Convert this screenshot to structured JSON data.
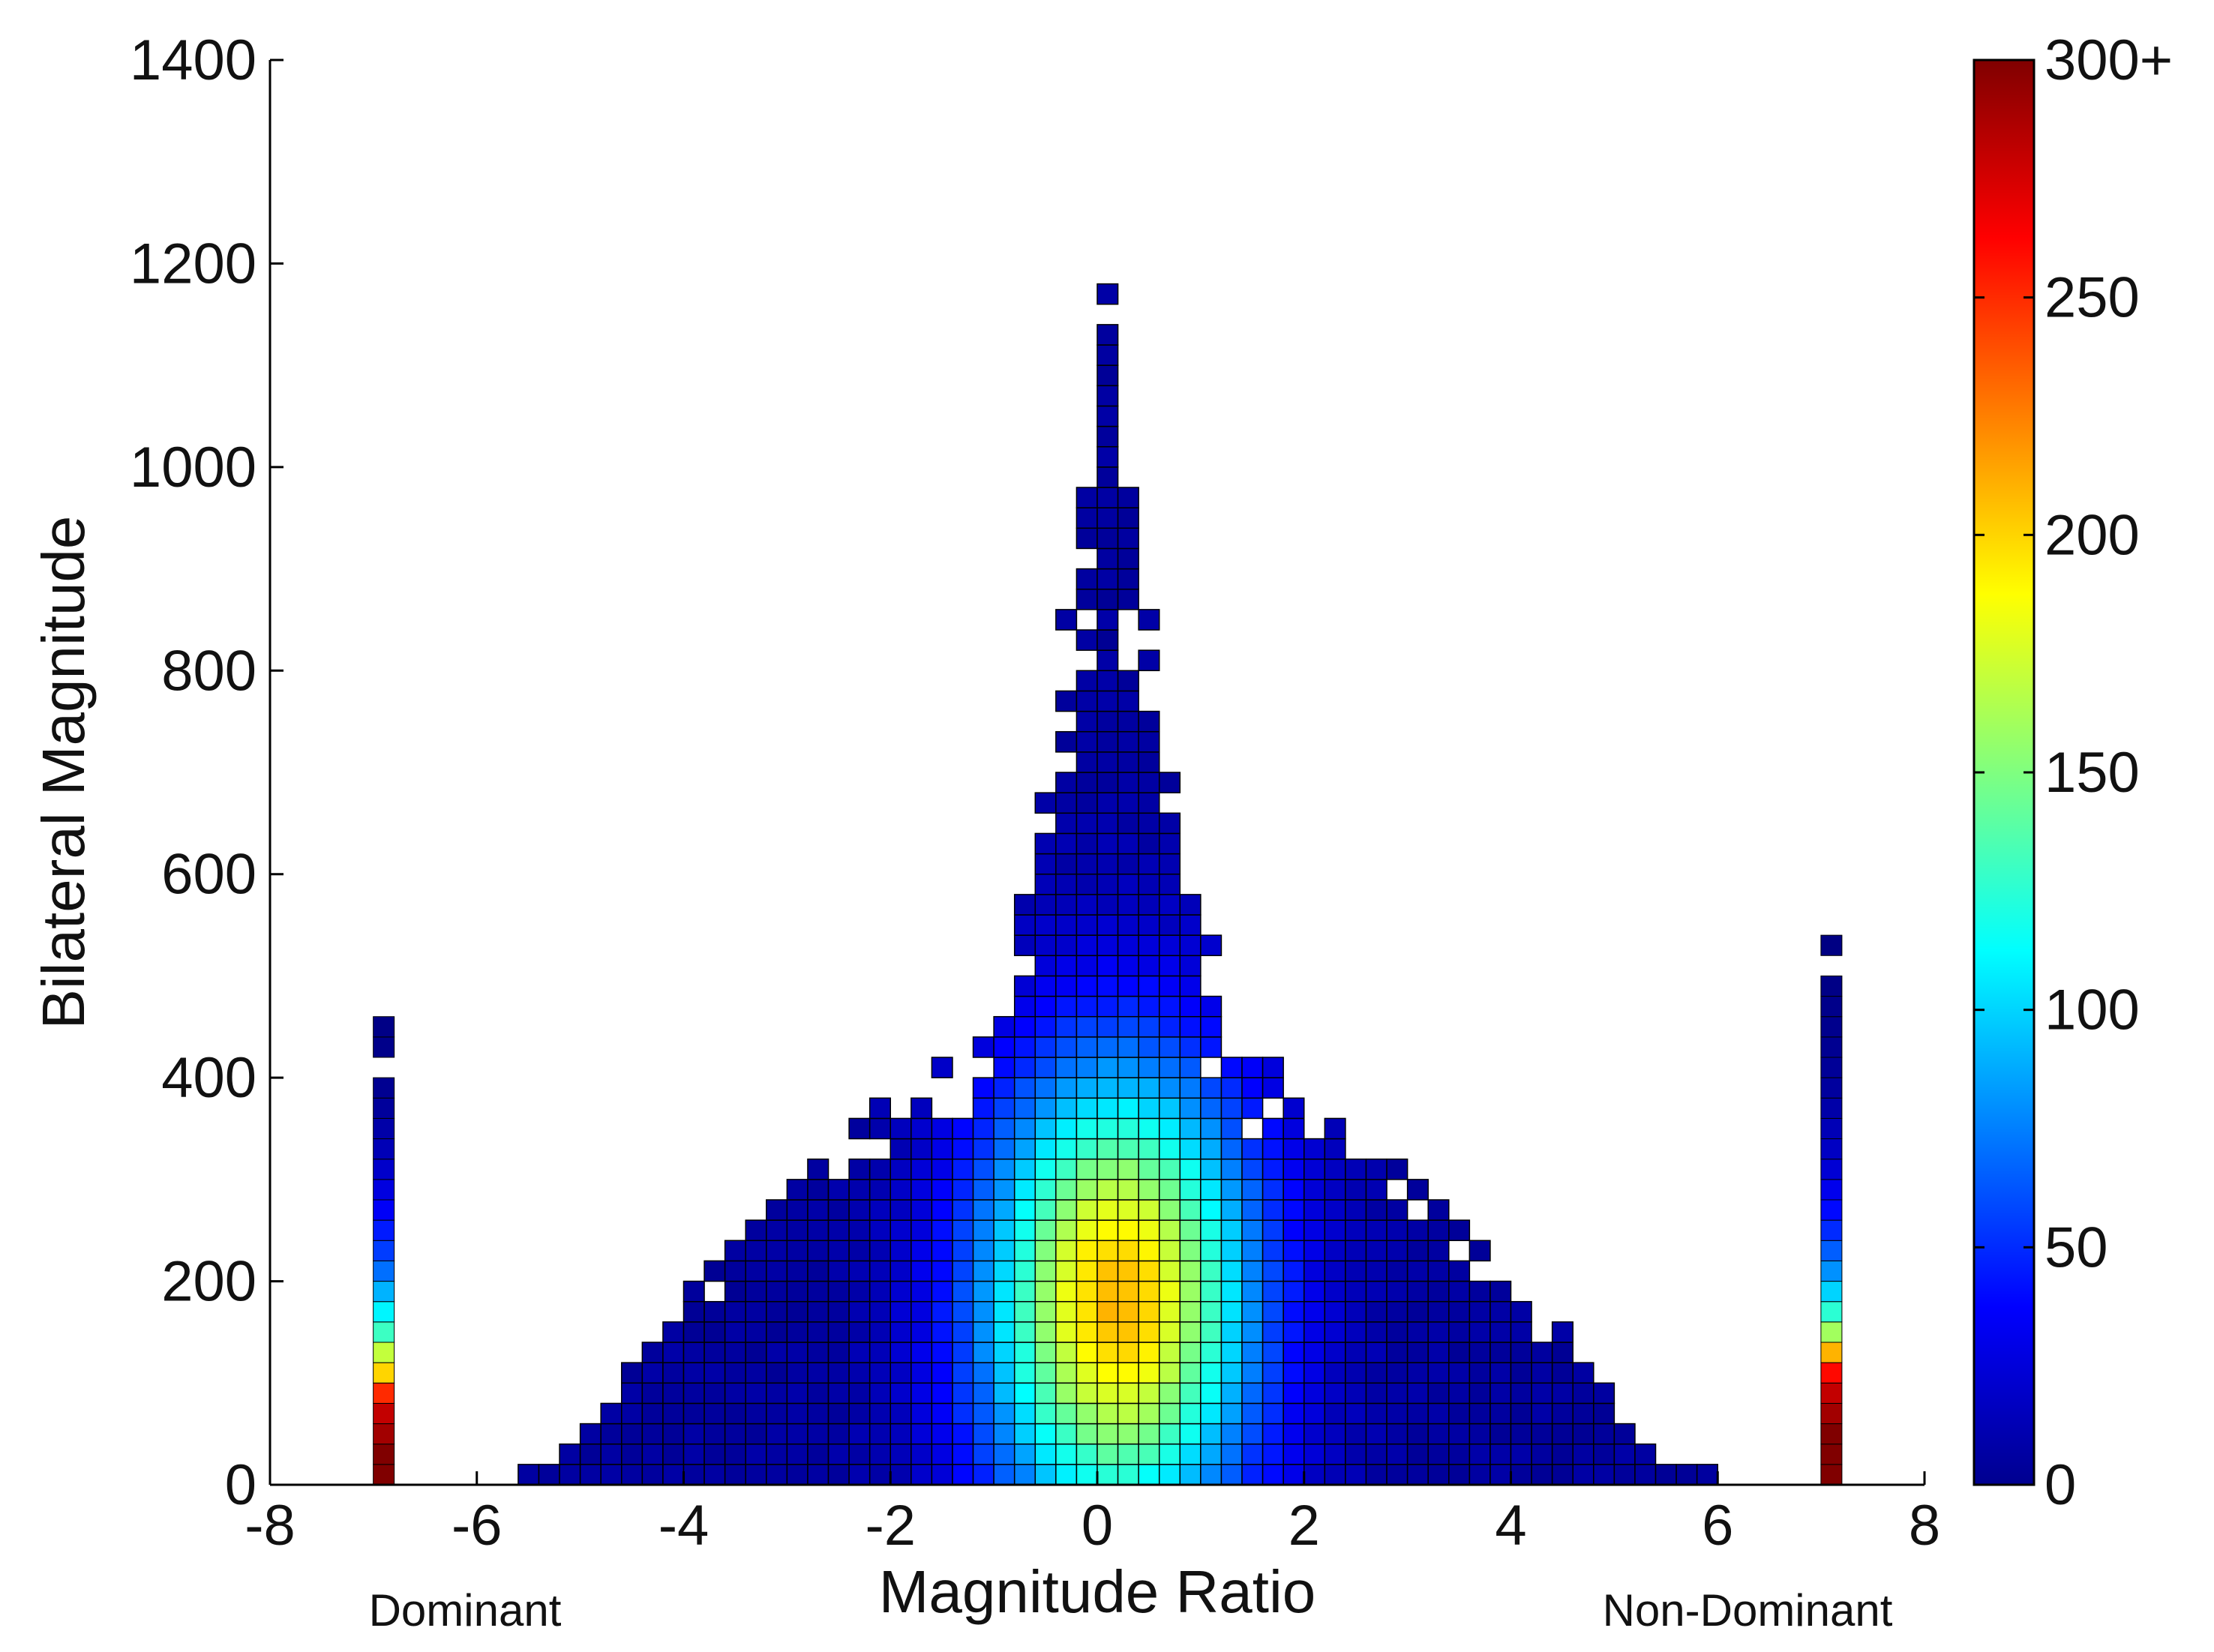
{
  "chart_data": {
    "type": "heatmap",
    "title": "",
    "xlabel": "Magnitude Ratio",
    "ylabel": "Bilateral Magnitude",
    "xlim": [
      -8,
      8
    ],
    "ylim": [
      0,
      1400
    ],
    "xticks": [
      "-8",
      "-6",
      "-4",
      "-2",
      "0",
      "2",
      "4",
      "6",
      "8"
    ],
    "yticks": [
      "0",
      "200",
      "400",
      "600",
      "800",
      "1000",
      "1200",
      "1400"
    ],
    "annotations": {
      "left": "Dominant",
      "right": "Non-Dominant"
    },
    "colorbar": {
      "colormap": "jet",
      "range": [
        0,
        300
      ],
      "tick_labels": [
        "0",
        "50",
        "100",
        "150",
        "200",
        "250",
        "300+"
      ]
    },
    "grid": false,
    "bin_width_x": 0.2,
    "bin_height_y": 20,
    "density_model": {
      "peak_count": 200,
      "peak_location": [
        0.2,
        180
      ],
      "x_spread_sd": 0.9,
      "y_spread_sd": 160,
      "outer_extent_x": 4.5,
      "outer_extent_y_at_center": 1180
    },
    "edge_columns": [
      {
        "name": "Dominant",
        "x": -6.9,
        "bins": [
          {
            "y": 0,
            "count": 300
          },
          {
            "y": 20,
            "count": 300
          },
          {
            "y": 40,
            "count": 290
          },
          {
            "y": 60,
            "count": 280
          },
          {
            "y": 80,
            "count": 250
          },
          {
            "y": 100,
            "count": 200
          },
          {
            "y": 120,
            "count": 170
          },
          {
            "y": 140,
            "count": 130
          },
          {
            "y": 160,
            "count": 110
          },
          {
            "y": 180,
            "count": 90
          },
          {
            "y": 200,
            "count": 70
          },
          {
            "y": 220,
            "count": 55
          },
          {
            "y": 240,
            "count": 45
          },
          {
            "y": 260,
            "count": 35
          },
          {
            "y": 280,
            "count": 28
          },
          {
            "y": 300,
            "count": 22
          },
          {
            "y": 320,
            "count": 16
          },
          {
            "y": 340,
            "count": 12
          },
          {
            "y": 360,
            "count": 8
          },
          {
            "y": 380,
            "count": 5
          },
          {
            "y": 420,
            "count": 3
          },
          {
            "y": 440,
            "count": 2
          }
        ]
      },
      {
        "name": "Non-Dominant",
        "x": 7.1,
        "bins": [
          {
            "y": 0,
            "count": 300
          },
          {
            "y": 20,
            "count": 300
          },
          {
            "y": 40,
            "count": 300
          },
          {
            "y": 60,
            "count": 290
          },
          {
            "y": 80,
            "count": 280
          },
          {
            "y": 100,
            "count": 260
          },
          {
            "y": 120,
            "count": 210
          },
          {
            "y": 140,
            "count": 160
          },
          {
            "y": 160,
            "count": 125
          },
          {
            "y": 180,
            "count": 100
          },
          {
            "y": 200,
            "count": 80
          },
          {
            "y": 220,
            "count": 65
          },
          {
            "y": 240,
            "count": 50
          },
          {
            "y": 260,
            "count": 40
          },
          {
            "y": 280,
            "count": 32
          },
          {
            "y": 300,
            "count": 25
          },
          {
            "y": 320,
            "count": 20
          },
          {
            "y": 340,
            "count": 16
          },
          {
            "y": 360,
            "count": 12
          },
          {
            "y": 380,
            "count": 9
          },
          {
            "y": 400,
            "count": 7
          },
          {
            "y": 420,
            "count": 5
          },
          {
            "y": 440,
            "count": 4
          },
          {
            "y": 460,
            "count": 3
          },
          {
            "y": 480,
            "count": 2
          },
          {
            "y": 520,
            "count": 1
          }
        ]
      }
    ]
  }
}
